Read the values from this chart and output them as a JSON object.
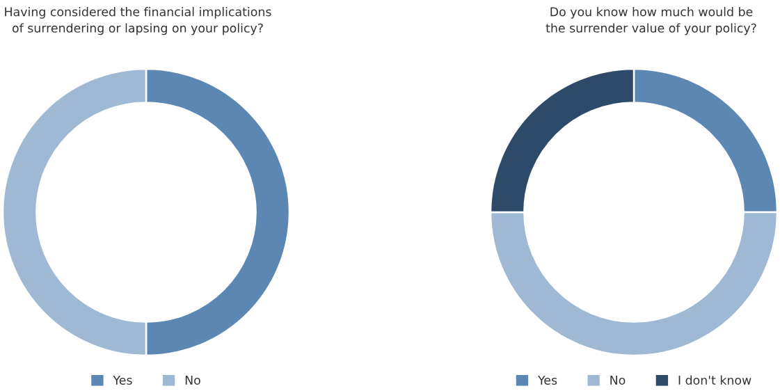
{
  "chart_data": [
    {
      "type": "donut",
      "title": "Having considered the financial implications\nof surrendering or lapsing on your policy?",
      "categories": [
        "Yes",
        "No"
      ],
      "values": [
        50,
        50
      ],
      "colors": [
        "#5b87b2",
        "#9fb9d4"
      ],
      "legend": "bottom"
    },
    {
      "type": "donut",
      "title": "Do you know how much would be\nthe surrender value of your policy?",
      "categories": [
        "Yes",
        "No",
        "I don't know"
      ],
      "values": [
        25,
        50,
        25
      ],
      "colors": [
        "#5b87b2",
        "#9fb9d4",
        "#2d4a69"
      ],
      "legend": "bottom"
    }
  ]
}
